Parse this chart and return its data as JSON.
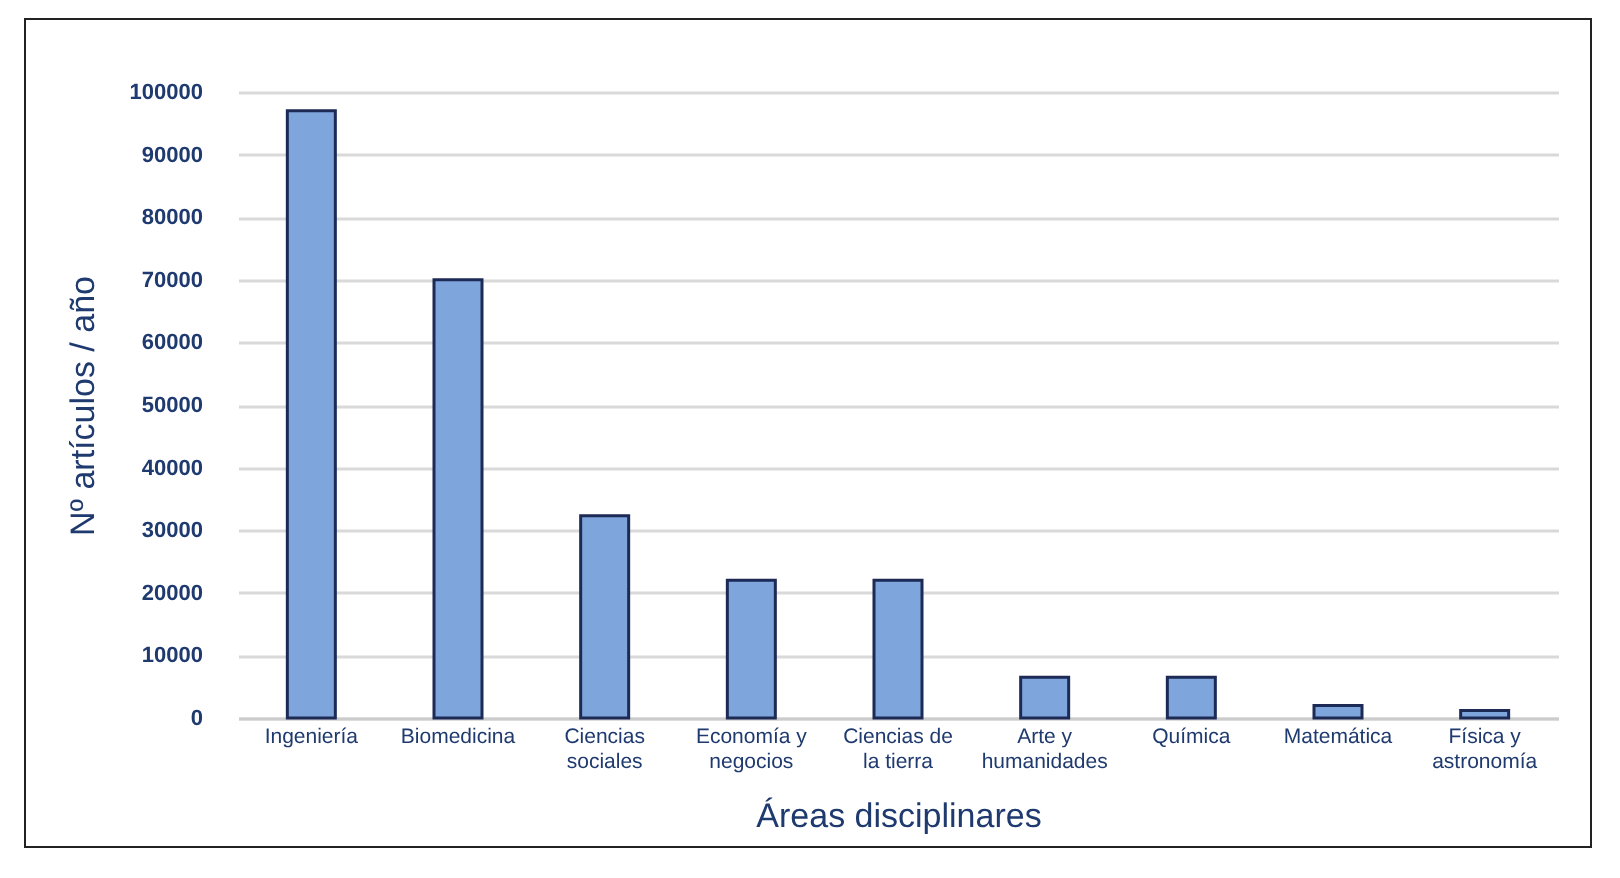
{
  "chart_data": {
    "type": "bar",
    "xlabel": "Áreas disciplinares",
    "ylabel": "Nº artículos / año",
    "categories": [
      "Ingeniería",
      "Biomedicina",
      "Ciencias sociales",
      "Economía y negocios",
      "Ciencias de la tierra",
      "Arte y humanidades",
      "Química",
      "Matemática",
      "Física y astronomía"
    ],
    "values": [
      97000,
      70000,
      32300,
      22000,
      22000,
      6500,
      6500,
      2000,
      1200
    ],
    "color": "#7ea6dc",
    "ylim": [
      0,
      100000
    ],
    "yticks": [
      0,
      10000,
      20000,
      30000,
      40000,
      50000,
      60000,
      70000,
      80000,
      90000,
      100000
    ],
    "grid": "y"
  }
}
